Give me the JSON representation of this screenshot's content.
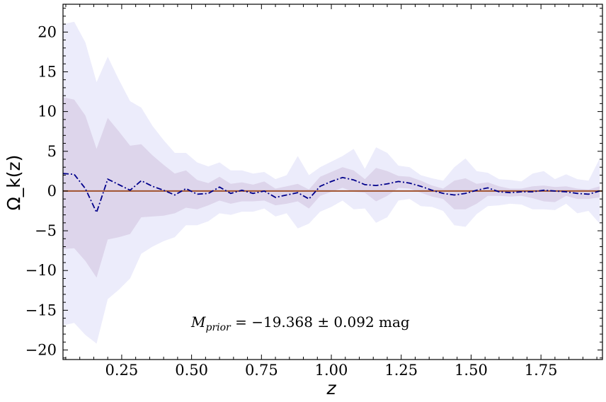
{
  "chart_data": {
    "type": "line",
    "xlabel": "z",
    "ylabel": "Ω_k(z)",
    "xlim": [
      0.04,
      1.97
    ],
    "ylim": [
      -21.2,
      23.5
    ],
    "x_ticks": [
      0.25,
      0.5,
      0.75,
      1.0,
      1.25,
      1.5,
      1.75
    ],
    "x_tick_labels": [
      "0.25",
      "0.50",
      "0.75",
      "1.00",
      "1.25",
      "1.50",
      "1.75"
    ],
    "y_ticks": [
      -20,
      -15,
      -10,
      -5,
      0,
      5,
      10,
      15,
      20
    ],
    "y_tick_labels": [
      "−20",
      "−15",
      "−10",
      "−5",
      "0",
      "5",
      "10",
      "15",
      "20"
    ],
    "annotation": {
      "symbol": "M",
      "subscript": "prior",
      "expression": " = −19.368 ± 0.092 ",
      "unit": "mag"
    },
    "colors": {
      "band_2sigma": "#ececfb",
      "band_1sigma": "#ddd5eb",
      "mean_line": "#00008b",
      "reference_line": "#a0522d"
    },
    "reference_value": 0,
    "x": [
      0.04,
      0.08,
      0.12,
      0.16,
      0.2,
      0.24,
      0.28,
      0.32,
      0.36,
      0.4,
      0.44,
      0.48,
      0.52,
      0.56,
      0.6,
      0.64,
      0.68,
      0.72,
      0.76,
      0.8,
      0.84,
      0.88,
      0.92,
      0.96,
      1.0,
      1.04,
      1.08,
      1.12,
      1.16,
      1.2,
      1.24,
      1.28,
      1.32,
      1.36,
      1.4,
      1.44,
      1.48,
      1.52,
      1.56,
      1.6,
      1.64,
      1.68,
      1.72,
      1.76,
      1.8,
      1.84,
      1.88,
      1.92,
      1.96
    ],
    "series": [
      {
        "values": [
          2.2,
          2.1,
          0.3,
          -2.7,
          1.5,
          0.8,
          0.1,
          1.3,
          0.6,
          0.1,
          -0.5,
          0.3,
          -0.4,
          -0.3,
          0.5,
          -0.3,
          0.1,
          -0.3,
          0.0,
          -0.8,
          -0.5,
          -0.2,
          -1.0,
          0.6,
          1.2,
          1.7,
          1.4,
          0.8,
          0.7,
          0.9,
          1.2,
          1.0,
          0.6,
          0.1,
          -0.3,
          -0.5,
          -0.3,
          0.1,
          0.4,
          -0.1,
          -0.2,
          -0.1,
          -0.1,
          0.1,
          0.0,
          -0.1,
          -0.3,
          -0.4,
          0.0
        ],
        "band_1sigma_upper": [
          11.8,
          11.5,
          9.5,
          5.3,
          9.2,
          7.5,
          5.7,
          5.9,
          4.5,
          3.3,
          2.2,
          2.6,
          1.4,
          1.0,
          1.8,
          0.9,
          1.1,
          0.8,
          1.2,
          0.3,
          0.6,
          0.9,
          0.2,
          1.8,
          2.4,
          3.0,
          2.6,
          1.5,
          2.9,
          2.5,
          1.9,
          1.8,
          1.3,
          0.7,
          0.3,
          1.3,
          1.6,
          0.9,
          1.1,
          0.6,
          0.3,
          0.3,
          0.6,
          0.7,
          0.5,
          0.6,
          0.3,
          0.2,
          0.6
        ],
        "band_1sigma_lower": [
          -7.3,
          -7.2,
          -8.8,
          -10.9,
          -6.1,
          -5.8,
          -5.4,
          -3.3,
          -3.2,
          -3.1,
          -2.8,
          -2.1,
          -2.3,
          -1.8,
          -1.2,
          -1.6,
          -1.3,
          -1.3,
          -1.2,
          -1.8,
          -1.6,
          -1.3,
          -2.2,
          -0.6,
          -0.1,
          0.4,
          -0.1,
          -0.2,
          -1.3,
          -0.6,
          0.4,
          0.3,
          -0.2,
          -0.7,
          -1.0,
          -2.3,
          -2.3,
          -1.6,
          -0.6,
          -0.6,
          -0.7,
          -0.6,
          -0.9,
          -1.3,
          -1.4,
          -0.6,
          -1.0,
          -1.0,
          -0.8
        ],
        "band_2sigma_upper": [
          21.0,
          21.3,
          18.7,
          13.7,
          16.9,
          14.0,
          11.3,
          10.5,
          8.2,
          6.4,
          4.8,
          4.8,
          3.6,
          3.1,
          3.6,
          2.6,
          2.6,
          2.2,
          2.4,
          1.5,
          2.0,
          4.4,
          2.0,
          3.0,
          3.7,
          4.4,
          5.3,
          2.8,
          5.5,
          4.8,
          3.2,
          3.0,
          2.0,
          1.6,
          1.3,
          3.0,
          4.1,
          2.5,
          2.3,
          1.5,
          1.4,
          1.2,
          2.2,
          2.5,
          1.5,
          2.1,
          1.5,
          1.3,
          4.1
        ],
        "band_2sigma_lower": [
          -16.9,
          -16.6,
          -18.1,
          -19.2,
          -13.6,
          -12.4,
          -11.0,
          -7.9,
          -7.0,
          -6.3,
          -5.8,
          -4.3,
          -4.3,
          -3.8,
          -2.8,
          -3.0,
          -2.6,
          -2.6,
          -2.2,
          -3.2,
          -2.8,
          -4.7,
          -4.1,
          -2.6,
          -2.0,
          -1.2,
          -2.3,
          -2.2,
          -4.0,
          -3.3,
          -1.2,
          -1.0,
          -1.9,
          -2.0,
          -2.5,
          -4.3,
          -4.5,
          -2.9,
          -1.9,
          -1.8,
          -1.6,
          -1.7,
          -2.3,
          -2.3,
          -2.4,
          -1.6,
          -2.8,
          -2.5,
          -4.1
        ]
      }
    ]
  }
}
